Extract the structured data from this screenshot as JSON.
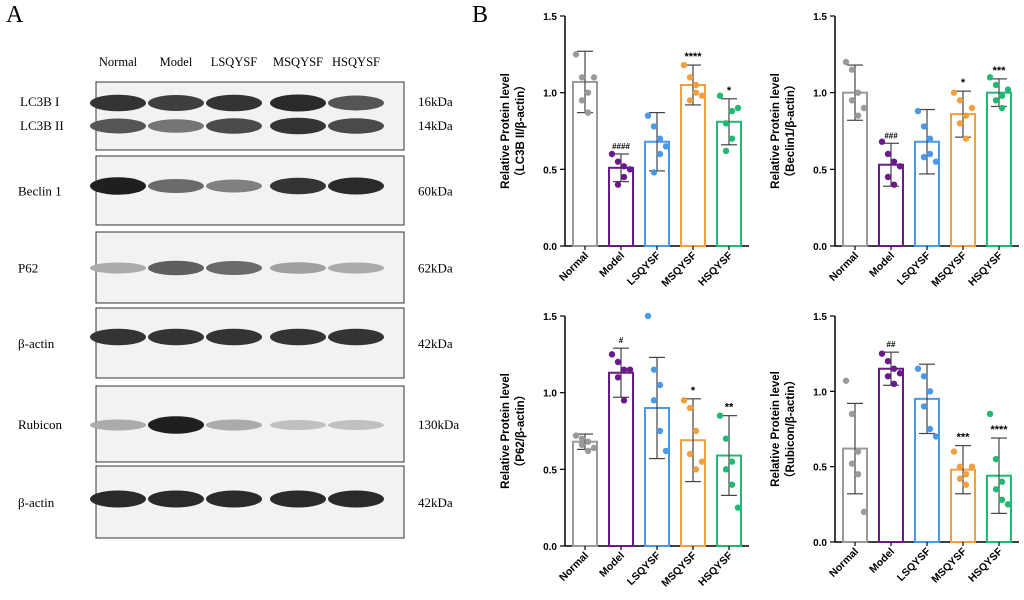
{
  "panels": {
    "a": "A",
    "b": "B"
  },
  "western_blot": {
    "lanes": [
      "Normal",
      "Model",
      "LSQYSF",
      "MSQYSF",
      "HSQYSF"
    ],
    "rows": [
      {
        "labels": [
          "LC3B I",
          "LC3B II"
        ],
        "sizes": [
          "16kDa",
          "14kDa"
        ],
        "intensity": [
          [
            0.85,
            0.8,
            0.85,
            0.9,
            0.7
          ],
          [
            0.7,
            0.55,
            0.75,
            0.85,
            0.75
          ]
        ]
      },
      {
        "labels": [
          "Beclin 1"
        ],
        "sizes": [
          "60kDa"
        ],
        "intensity": [
          [
            0.95,
            0.6,
            0.5,
            0.85,
            0.9
          ]
        ]
      },
      {
        "labels": [
          "P62"
        ],
        "sizes": [
          "62kDa"
        ],
        "intensity": [
          [
            0.3,
            0.65,
            0.6,
            0.35,
            0.3
          ]
        ]
      },
      {
        "labels": [
          "β-actin"
        ],
        "sizes": [
          "42kDa"
        ],
        "intensity": [
          [
            0.85,
            0.85,
            0.85,
            0.85,
            0.85
          ]
        ]
      },
      {
        "labels": [
          "Rubicon"
        ],
        "sizes": [
          "130kDa"
        ],
        "intensity": [
          [
            0.3,
            0.95,
            0.3,
            0.2,
            0.2
          ]
        ]
      },
      {
        "labels": [
          "β-actin"
        ],
        "sizes": [
          "42kDa"
        ],
        "intensity": [
          [
            0.9,
            0.9,
            0.9,
            0.9,
            0.9
          ]
        ]
      }
    ]
  },
  "chart_data": [
    {
      "type": "bar",
      "categories": [
        "Normal",
        "Model",
        "LSQYSF",
        "MSQYSF",
        "HSQYSF"
      ],
      "values": [
        1.07,
        0.51,
        0.68,
        1.05,
        0.81
      ],
      "errors": [
        0.2,
        0.09,
        0.19,
        0.13,
        0.15
      ],
      "points": [
        [
          1.25,
          1.1,
          1.0,
          0.95,
          0.87,
          1.1
        ],
        [
          0.6,
          0.55,
          0.45,
          0.4,
          0.52,
          0.5
        ],
        [
          0.85,
          0.78,
          0.6,
          0.48,
          0.7,
          0.65
        ],
        [
          1.18,
          1.1,
          1.0,
          0.95,
          1.05,
          0.98
        ],
        [
          0.98,
          0.8,
          0.7,
          0.62,
          0.88,
          0.9
        ]
      ],
      "annotations": [
        "",
        "####",
        "",
        "****",
        "*"
      ],
      "ylabel": [
        "Relative Protein level",
        "（LC3B II/β-actin）"
      ],
      "ylim": [
        0,
        1.5
      ],
      "yticks": [
        "0.0",
        "0.5",
        "1.0",
        "1.5"
      ]
    },
    {
      "type": "bar",
      "categories": [
        "Normal",
        "Model",
        "LSQYSF",
        "MSQYSF",
        "HSQYSF"
      ],
      "values": [
        1.0,
        0.53,
        0.68,
        0.86,
        1.0
      ],
      "errors": [
        0.18,
        0.14,
        0.21,
        0.15,
        0.09
      ],
      "points": [
        [
          1.2,
          1.15,
          1.0,
          0.95,
          0.85,
          0.9
        ],
        [
          0.68,
          0.6,
          0.55,
          0.45,
          0.4,
          0.52
        ],
        [
          0.88,
          0.78,
          0.7,
          0.58,
          0.6,
          0.55
        ],
        [
          1.0,
          0.95,
          0.85,
          0.8,
          0.7,
          0.9
        ],
        [
          1.1,
          1.05,
          0.98,
          0.95,
          0.9,
          1.02
        ]
      ],
      "annotations": [
        "",
        "###",
        "",
        "*",
        "***"
      ],
      "ylabel": [
        "Relative Protein level",
        "（Beclin1/β-actin）"
      ],
      "ylim": [
        0,
        1.5
      ],
      "yticks": [
        "0.0",
        "0.5",
        "1.0",
        "1.5"
      ]
    },
    {
      "type": "bar",
      "categories": [
        "Normal",
        "Model",
        "LSQYSF",
        "MSQYSF",
        "HSQYSF"
      ],
      "values": [
        0.68,
        1.13,
        0.9,
        0.69,
        0.59
      ],
      "errors": [
        0.05,
        0.16,
        0.33,
        0.27,
        0.26
      ],
      "points": [
        [
          0.72,
          0.7,
          0.68,
          0.66,
          0.62,
          0.64
        ],
        [
          1.25,
          1.2,
          1.15,
          1.1,
          0.95,
          1.15
        ],
        [
          1.5,
          1.15,
          1.05,
          0.95,
          0.75,
          0.62
        ],
        [
          0.95,
          0.9,
          0.75,
          0.6,
          0.5,
          0.55
        ],
        [
          0.85,
          0.7,
          0.55,
          0.5,
          0.4,
          0.25
        ]
      ],
      "annotations": [
        "",
        "#",
        "",
        "*",
        "**"
      ],
      "ylabel": [
        "Relative Protein level",
        "（P62/β-actin）"
      ],
      "ylim": [
        0,
        1.5
      ],
      "yticks": [
        "0.0",
        "0.5",
        "1.0",
        "1.5"
      ]
    },
    {
      "type": "bar",
      "categories": [
        "Normal",
        "Model",
        "LSQYSF",
        "MSQYSF",
        "HSQYSF"
      ],
      "values": [
        0.62,
        1.15,
        0.95,
        0.48,
        0.44
      ],
      "errors": [
        0.3,
        0.11,
        0.23,
        0.16,
        0.25
      ],
      "points": [
        [
          1.07,
          0.85,
          0.6,
          0.52,
          0.45,
          0.2
        ],
        [
          1.25,
          1.2,
          1.15,
          1.1,
          1.05,
          1.12
        ],
        [
          1.15,
          1.1,
          1.0,
          0.9,
          0.75,
          0.7
        ],
        [
          0.6,
          0.5,
          0.45,
          0.42,
          0.38,
          0.5
        ],
        [
          0.85,
          0.55,
          0.4,
          0.35,
          0.28,
          0.25
        ]
      ],
      "annotations": [
        "",
        "##",
        "",
        "***",
        "****"
      ],
      "ylabel": [
        "Relative Protein level",
        "（Rubicon/β-actin）"
      ],
      "ylim": [
        0,
        1.5
      ],
      "yticks": [
        "0.0",
        "0.5",
        "1.0",
        "1.5"
      ]
    }
  ],
  "colors": [
    "#9a9a9a",
    "#6a1a8a",
    "#4a98e8",
    "#f0a040",
    "#22b873"
  ]
}
